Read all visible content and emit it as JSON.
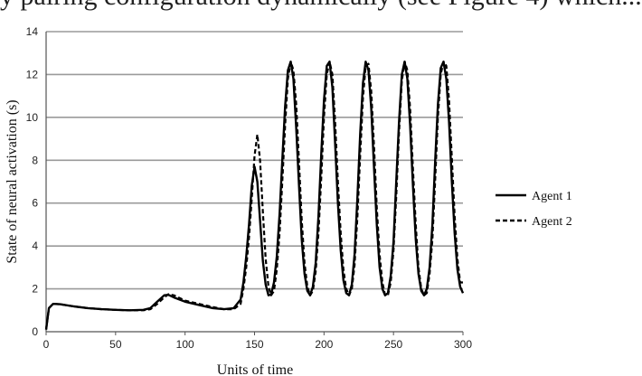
{
  "top_text": "y pairing configuration dynamically (see Figure 4) which...",
  "chart_data": {
    "type": "line",
    "title": "",
    "xlabel": "Units of time",
    "ylabel": "State of neural activation (s)",
    "xlim": [
      0,
      300
    ],
    "ylim": [
      0,
      14
    ],
    "xticks": [
      0,
      50,
      100,
      150,
      200,
      250,
      300
    ],
    "yticks": [
      0,
      2,
      4,
      6,
      8,
      10,
      12,
      14
    ],
    "grid": "horizontal",
    "legend_position": "right",
    "series": [
      {
        "name": "Agent 1",
        "style": "solid",
        "color": "#000000",
        "x": [
          0,
          2,
          5,
          10,
          20,
          30,
          40,
          50,
          60,
          70,
          75,
          80,
          85,
          88,
          92,
          100,
          110,
          120,
          128,
          135,
          140,
          142,
          144,
          146,
          148,
          150,
          152,
          154,
          156,
          158,
          160,
          162,
          164,
          166,
          168,
          170,
          172,
          174,
          176,
          178,
          180,
          182,
          184,
          186,
          188,
          190,
          192,
          194,
          196,
          198,
          200,
          202,
          204,
          206,
          208,
          210,
          212,
          214,
          216,
          218,
          220,
          222,
          224,
          226,
          228,
          230,
          232,
          234,
          236,
          238,
          240,
          242,
          244,
          246,
          248,
          250,
          252,
          254,
          256,
          258,
          260,
          262,
          264,
          266,
          268,
          270,
          272,
          274,
          276,
          278,
          280,
          282,
          284,
          286,
          288,
          290,
          292,
          294,
          296,
          298,
          300
        ],
        "y": [
          0.1,
          1.1,
          1.3,
          1.28,
          1.18,
          1.1,
          1.05,
          1.02,
          1.0,
          1.02,
          1.1,
          1.4,
          1.7,
          1.72,
          1.6,
          1.4,
          1.25,
          1.1,
          1.05,
          1.1,
          1.5,
          2.3,
          3.5,
          5.0,
          6.8,
          7.7,
          7.0,
          5.2,
          3.3,
          2.2,
          1.7,
          1.75,
          2.3,
          3.5,
          5.5,
          8.0,
          10.5,
          12.2,
          12.6,
          11.8,
          9.5,
          6.8,
          4.3,
          2.7,
          1.9,
          1.7,
          2.1,
          3.2,
          5.4,
          8.3,
          10.8,
          12.4,
          12.6,
          11.4,
          8.8,
          6.0,
          3.8,
          2.4,
          1.8,
          1.7,
          2.2,
          3.6,
          6.2,
          9.2,
          11.6,
          12.6,
          12.2,
          10.4,
          7.6,
          5.0,
          3.0,
          2.0,
          1.7,
          1.8,
          2.6,
          4.2,
          7.0,
          9.8,
          12.0,
          12.6,
          11.8,
          9.6,
          6.8,
          4.3,
          2.7,
          1.9,
          1.7,
          2.0,
          3.0,
          5.0,
          8.0,
          10.6,
          12.3,
          12.6,
          11.8,
          9.8,
          7.0,
          4.6,
          2.9,
          2.1,
          1.8
        ]
      },
      {
        "name": "Agent 2",
        "style": "dashed",
        "color": "#000000",
        "x": [
          0,
          2,
          5,
          10,
          20,
          30,
          40,
          50,
          60,
          70,
          75,
          80,
          85,
          88,
          92,
          100,
          110,
          120,
          128,
          135,
          140,
          142,
          144,
          146,
          148,
          150,
          152,
          154,
          156,
          158,
          160,
          162,
          164,
          166,
          168,
          170,
          172,
          174,
          176,
          178,
          180,
          182,
          184,
          186,
          188,
          190,
          192,
          194,
          196,
          198,
          200,
          202,
          204,
          206,
          208,
          210,
          212,
          214,
          216,
          218,
          220,
          222,
          224,
          226,
          228,
          230,
          232,
          234,
          236,
          238,
          240,
          242,
          244,
          246,
          248,
          250,
          252,
          254,
          256,
          258,
          260,
          262,
          264,
          266,
          268,
          270,
          272,
          274,
          276,
          278,
          280,
          282,
          284,
          286,
          288,
          290,
          292,
          294,
          296,
          298,
          300
        ],
        "y": [
          0.1,
          1.1,
          1.3,
          1.28,
          1.18,
          1.1,
          1.05,
          1.02,
          1.0,
          1.0,
          1.05,
          1.3,
          1.6,
          1.75,
          1.7,
          1.45,
          1.3,
          1.15,
          1.05,
          1.05,
          1.3,
          2.0,
          3.0,
          4.4,
          6.2,
          8.2,
          9.2,
          8.0,
          5.6,
          3.4,
          2.1,
          1.7,
          1.9,
          2.9,
          4.6,
          7.0,
          9.6,
          11.8,
          12.6,
          12.2,
          10.6,
          7.9,
          5.2,
          3.2,
          2.1,
          1.7,
          1.9,
          2.8,
          4.6,
          7.2,
          10.0,
          12.0,
          12.6,
          12.0,
          9.8,
          7.0,
          4.6,
          2.9,
          2.0,
          1.7,
          2.0,
          3.1,
          5.3,
          8.2,
          10.9,
          12.4,
          12.5,
          11.2,
          8.6,
          5.8,
          3.6,
          2.3,
          1.7,
          1.7,
          2.3,
          3.8,
          6.3,
          9.3,
          11.7,
          12.6,
          12.2,
          10.4,
          7.6,
          5.0,
          3.0,
          2.0,
          1.7,
          1.8,
          2.7,
          4.3,
          7.1,
          10.0,
          12.0,
          12.6,
          12.4,
          10.8,
          8.1,
          5.4,
          3.4,
          2.3,
          2.3
        ]
      }
    ]
  }
}
